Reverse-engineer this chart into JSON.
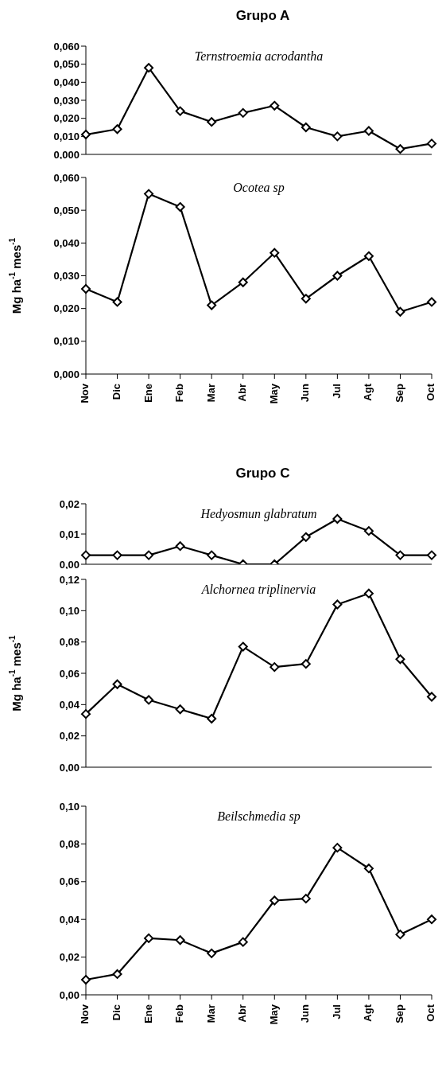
{
  "chart_data": [
    {
      "type": "line",
      "title": "Grupo A",
      "categories": [
        null,
        null,
        null,
        null,
        null,
        null,
        null,
        null,
        null,
        null,
        null,
        null
      ],
      "series": [
        {
          "color": "#000000",
          "values": [
            0.011,
            0.014,
            0.048,
            0.024,
            0.018,
            0.023,
            0.027,
            0.015,
            0.01,
            0.013,
            0.003,
            0.006
          ]
        }
      ],
      "annotations": [
        "Ternstroemia acrodantha"
      ],
      "ylim": [
        0,
        0.06
      ],
      "yticks": [
        {
          "value": 0,
          "label": "0,000"
        },
        {
          "value": 0.01,
          "label": "0,010"
        },
        {
          "value": 0.02,
          "label": "0,020"
        },
        {
          "value": 0.03,
          "label": "0,030"
        },
        {
          "value": 0.04,
          "label": "0,040"
        },
        {
          "value": 0.05,
          "label": "0,050"
        },
        {
          "value": 0.06,
          "label": "0,060"
        }
      ],
      "marker": "diamond",
      "grid": false,
      "legend": false
    },
    {
      "type": "line",
      "ylabel": "Mg ha$^{-1}$ mes$^{-1}$",
      "categories": [
        "Nov",
        "Dic",
        "Ene",
        "Feb",
        "Mar",
        "Abr",
        "May",
        "Jun",
        "Jul",
        "Agt",
        "Sep",
        "Oct"
      ],
      "series": [
        {
          "color": "#000000",
          "values": [
            0.026,
            0.022,
            0.055,
            0.051,
            0.021,
            0.028,
            0.037,
            0.023,
            0.03,
            0.036,
            0.019,
            0.022
          ]
        }
      ],
      "annotations": [
        "Ocotea sp"
      ],
      "ylim": [
        0,
        0.06
      ],
      "yticks": [
        {
          "value": 0,
          "label": "0,000"
        },
        {
          "value": 0.01,
          "label": "0,010"
        },
        {
          "value": 0.02,
          "label": "0,020"
        },
        {
          "value": 0.03,
          "label": "0,030"
        },
        {
          "value": 0.04,
          "label": "0,040"
        },
        {
          "value": 0.05,
          "label": "0,050"
        },
        {
          "value": 0.06,
          "label": "0,060"
        }
      ],
      "marker": "diamond",
      "grid": false,
      "legend": false
    },
    {
      "type": "line",
      "title": "Grupo C",
      "categories": [
        null,
        null,
        null,
        null,
        null,
        null,
        null,
        null,
        null,
        null,
        null,
        null
      ],
      "series": [
        {
          "color": "#000000",
          "values": [
            0.003,
            0.003,
            0.003,
            0.006,
            0.003,
            0.0,
            0.0,
            0.009,
            0.015,
            0.011,
            0.003,
            0.003
          ]
        }
      ],
      "annotations": [
        "Hedyosmun glabratum"
      ],
      "ylim": [
        0,
        0.02
      ],
      "yticks": [
        {
          "value": 0,
          "label": "0,00"
        },
        {
          "value": 0.01,
          "label": "0,01"
        },
        {
          "value": 0.02,
          "label": "0,02"
        }
      ],
      "marker": "diamond",
      "grid": false,
      "legend": false
    },
    {
      "type": "line",
      "ylabel": "Mg ha$^{-1}$ mes$^{-1}$",
      "categories": [
        null,
        null,
        null,
        null,
        null,
        null,
        null,
        null,
        null,
        null,
        null,
        null
      ],
      "series": [
        {
          "color": "#000000",
          "values": [
            0.034,
            0.053,
            0.043,
            0.037,
            0.031,
            0.077,
            0.064,
            0.066,
            0.104,
            0.111,
            0.069,
            0.045
          ]
        }
      ],
      "annotations": [
        "Alchornea triplinervia"
      ],
      "ylim": [
        0,
        0.12
      ],
      "yticks": [
        {
          "value": 0,
          "label": "0,00"
        },
        {
          "value": 0.02,
          "label": "0,02"
        },
        {
          "value": 0.04,
          "label": "0,04"
        },
        {
          "value": 0.06,
          "label": "0,06"
        },
        {
          "value": 0.08,
          "label": "0,08"
        },
        {
          "value": 0.1,
          "label": "0,10"
        },
        {
          "value": 0.12,
          "label": "0,12"
        }
      ],
      "marker": "diamond",
      "grid": false,
      "legend": false
    },
    {
      "type": "line",
      "categories": [
        "Nov",
        "Dic",
        "Ene",
        "Feb",
        "Mar",
        "Abr",
        "May",
        "Jun",
        "Jul",
        "Agt",
        "Sep",
        "Oct"
      ],
      "series": [
        {
          "color": "#000000",
          "values": [
            0.008,
            0.011,
            0.03,
            0.029,
            0.022,
            0.028,
            0.05,
            0.051,
            0.078,
            0.067,
            0.032,
            0.04
          ]
        }
      ],
      "annotations": [
        "Beilschmedia sp"
      ],
      "ylim": [
        0,
        0.1
      ],
      "yticks": [
        {
          "value": 0,
          "label": "0,00"
        },
        {
          "value": 0.02,
          "label": "0,02"
        },
        {
          "value": 0.04,
          "label": "0,04"
        },
        {
          "value": 0.06,
          "label": "0,06"
        },
        {
          "value": 0.08,
          "label": "0,08"
        },
        {
          "value": 0.1,
          "label": "0,10"
        }
      ],
      "marker": "diamond",
      "grid": false,
      "legend": false
    }
  ]
}
